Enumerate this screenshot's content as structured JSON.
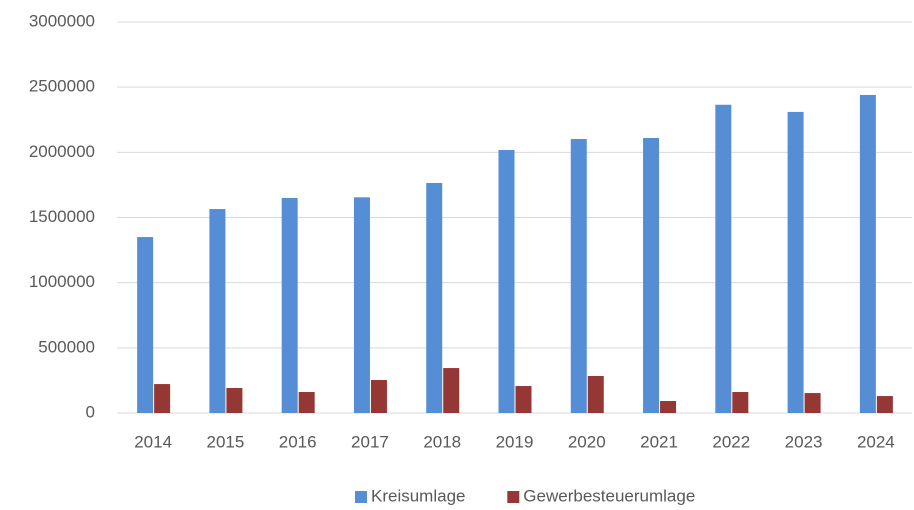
{
  "chart_data": {
    "type": "bar",
    "categories": [
      "2014",
      "2015",
      "2016",
      "2017",
      "2018",
      "2019",
      "2020",
      "2021",
      "2022",
      "2023",
      "2024"
    ],
    "series": [
      {
        "name": "Kreisumlage",
        "color": "#558ed5",
        "values": [
          1350000,
          1565000,
          1650000,
          1655000,
          1765000,
          2018000,
          2102000,
          2110000,
          2365000,
          2310000,
          2440000
        ]
      },
      {
        "name": "Gewerbesteuerumlage",
        "color": "#953735",
        "values": [
          222000,
          192000,
          161000,
          253000,
          345000,
          207000,
          284000,
          92000,
          161000,
          153000,
          130000
        ]
      }
    ],
    "ylim": [
      0,
      3000000
    ],
    "yticks": [
      0,
      500000,
      1000000,
      1500000,
      2000000,
      2500000,
      3000000
    ],
    "grid": true,
    "legend": "bottom"
  }
}
